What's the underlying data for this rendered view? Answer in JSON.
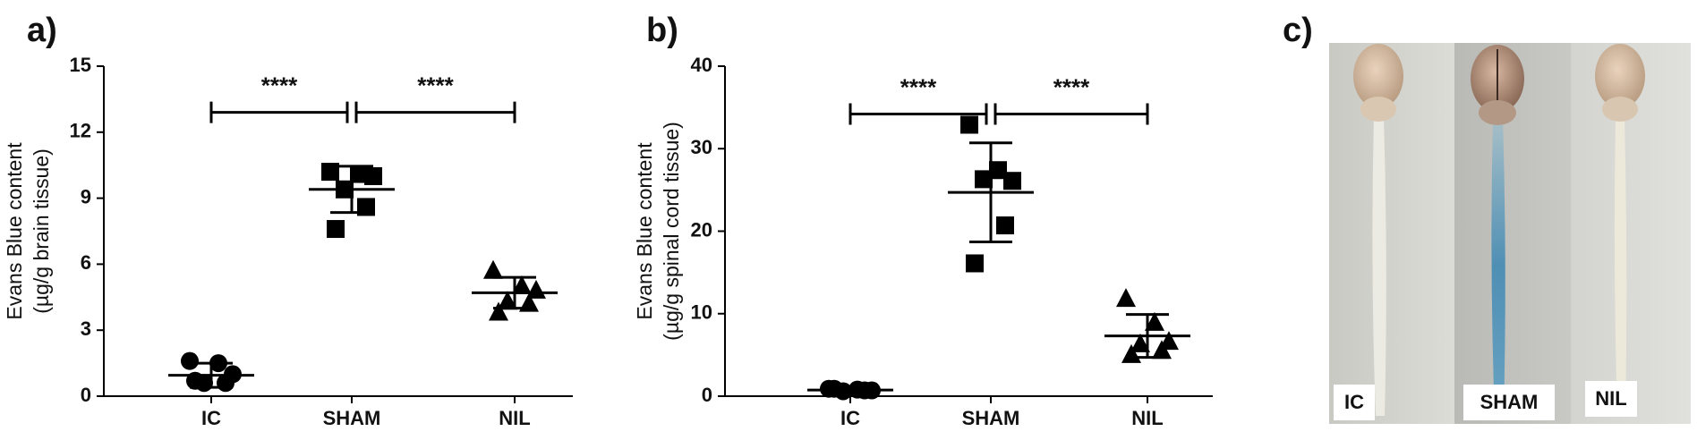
{
  "chart_data": [
    {
      "type": "dotplot",
      "panel_label": "a)",
      "ylabel": [
        "Evans Blue content",
        "(µg/g brain tissue)"
      ],
      "categories": [
        "IC",
        "SHAM",
        "NIL"
      ],
      "markers": [
        "circle",
        "square",
        "triangle"
      ],
      "color": "#000000",
      "points": [
        [
          1.6,
          1.5,
          1.0,
          0.6,
          0.6,
          0.7
        ],
        [
          10.2,
          10.1,
          10.0,
          9.4,
          8.6,
          7.6
        ],
        [
          5.7,
          5.0,
          4.8,
          4.3,
          4.2,
          3.8
        ]
      ],
      "means": [
        0.95,
        9.4,
        4.7
      ],
      "sds": [
        0.55,
        1.05,
        0.7
      ],
      "ylim": [
        0,
        15
      ],
      "yticks": [
        0,
        3,
        6,
        9,
        12,
        15
      ],
      "significance": [
        {
          "from": 0,
          "to": 1,
          "y": 12.9,
          "label": "****"
        },
        {
          "from": 1,
          "to": 2,
          "y": 12.9,
          "label": "****"
        }
      ]
    },
    {
      "type": "dotplot",
      "panel_label": "b)",
      "ylabel": [
        "Evans Blue content",
        "(µg/g  spinal cord tissue)"
      ],
      "categories": [
        "IC",
        "SHAM",
        "NIL"
      ],
      "markers": [
        "circle",
        "square",
        "triangle"
      ],
      "color": "#000000",
      "points": [
        [
          0.9,
          0.8,
          0.7,
          0.6,
          0.7,
          0.9
        ],
        [
          32.9,
          27.4,
          26.1,
          26.3,
          20.7,
          16.1
        ],
        [
          11.8,
          8.9,
          6.6,
          6.3,
          5.5,
          5.0
        ]
      ],
      "means": [
        0.75,
        24.7,
        7.3
      ],
      "sds": [
        0.15,
        6.0,
        2.6
      ],
      "ylim": [
        0,
        40
      ],
      "yticks": [
        0,
        10,
        20,
        30,
        40
      ],
      "significance": [
        {
          "from": 0,
          "to": 1,
          "y": 34.2,
          "label": "****"
        },
        {
          "from": 1,
          "to": 2,
          "y": 34.2,
          "label": "****"
        }
      ]
    }
  ],
  "panel_c": {
    "label": "c)",
    "captions": [
      "IC",
      "SHAM",
      "NIL"
    ]
  }
}
